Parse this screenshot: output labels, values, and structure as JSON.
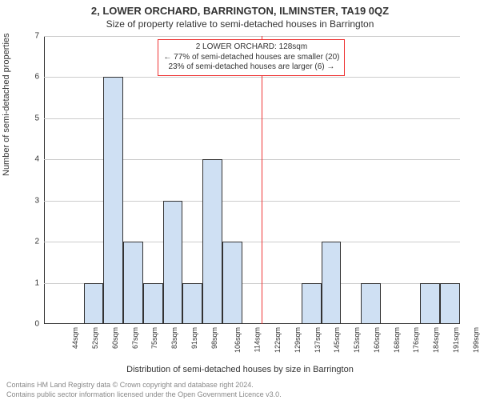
{
  "title_line1": "2, LOWER ORCHARD, BARRINGTON, ILMINSTER, TA19 0QZ",
  "title_line2": "Size of property relative to semi-detached houses in Barrington",
  "ylabel": "Number of semi-detached properties",
  "xlabel": "Distribution of semi-detached houses by size in Barrington",
  "footer1": "Contains HM Land Registry data © Crown copyright and database right 2024.",
  "footer2": "Contains public sector information licensed under the Open Government Licence v3.0.",
  "chart": {
    "type": "histogram",
    "ylim": [
      0,
      7
    ],
    "ytick_step": 1,
    "xticks": [
      "44sqm",
      "52sqm",
      "60sqm",
      "67sqm",
      "75sqm",
      "83sqm",
      "91sqm",
      "98sqm",
      "106sqm",
      "114sqm",
      "122sqm",
      "129sqm",
      "137sqm",
      "145sqm",
      "153sqm",
      "160sqm",
      "168sqm",
      "176sqm",
      "184sqm",
      "191sqm",
      "199sqm"
    ],
    "values": [
      0,
      0,
      1,
      6,
      2,
      1,
      3,
      1,
      4,
      2,
      0,
      0,
      0,
      1,
      2,
      0,
      1,
      0,
      0,
      1,
      1
    ],
    "bar_color": "#cfe0f3",
    "bar_border": "#333333",
    "grid_color": "#cccccc",
    "background_color": "#ffffff",
    "axis_color": "#333333",
    "refline_color": "#ee3333",
    "refline_index": 11,
    "annotation": {
      "line1": "2 LOWER ORCHARD: 128sqm",
      "line2": "← 77% of semi-detached houses are smaller (20)",
      "line3": "23% of semi-detached houses are larger (6) →",
      "border_color": "#ee3333",
      "text_color": "#333333",
      "bg_color": "#ffffff"
    }
  }
}
